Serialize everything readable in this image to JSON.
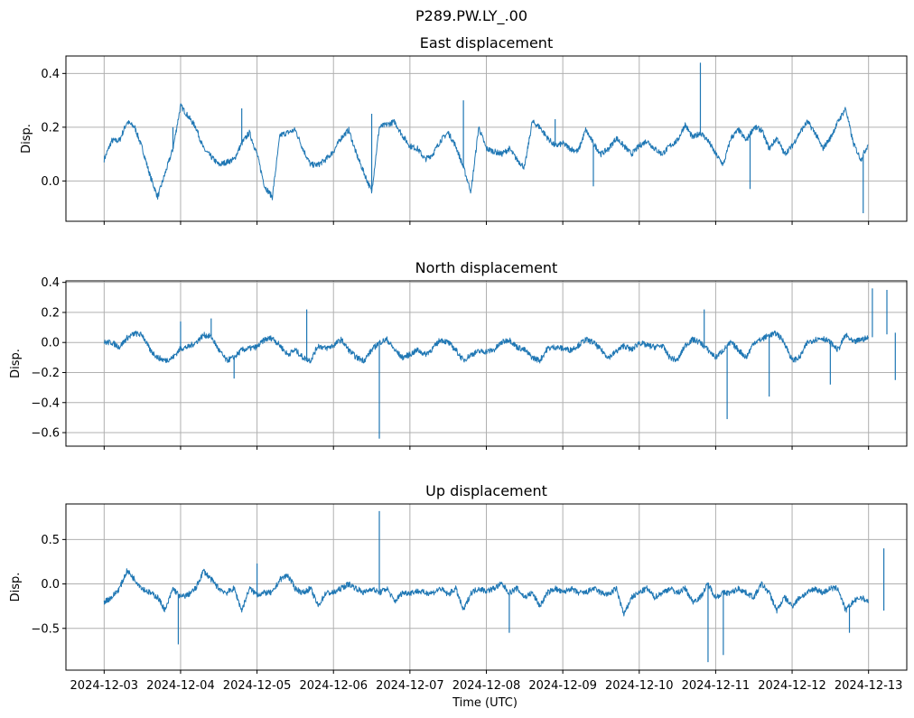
{
  "chart_data": {
    "type": "line",
    "suptitle": "P289.PW.LY_.00",
    "xlabel": "Time (UTC)",
    "x_ticks": [
      "2024-12-03",
      "2024-12-04",
      "2024-12-05",
      "2024-12-06",
      "2024-12-07",
      "2024-12-08",
      "2024-12-09",
      "2024-12-10",
      "2024-12-11",
      "2024-12-12",
      "2024-12-13"
    ],
    "xlim_days": [
      -0.5,
      10.5
    ],
    "grid": true,
    "line_color": "#1f77b4",
    "panels": [
      {
        "title": "East displacement",
        "ylabel": "Disp.",
        "ylim": [
          -0.15,
          0.465
        ],
        "y_ticks": [
          0.0,
          0.2,
          0.4
        ],
        "y_tick_labels": [
          "0.0",
          "0.2",
          "0.4"
        ],
        "show_x_labels": false,
        "series": {
          "day": [
            0,
            0.1,
            0.2,
            0.3,
            0.4,
            0.5,
            0.6,
            0.7,
            0.8,
            0.9,
            1.0,
            1.1,
            1.2,
            1.3,
            1.4,
            1.5,
            1.6,
            1.7,
            1.8,
            1.9,
            2.0,
            2.1,
            2.2,
            2.3,
            2.4,
            2.5,
            2.6,
            2.7,
            2.8,
            2.9,
            3.0,
            3.1,
            3.2,
            3.3,
            3.4,
            3.5,
            3.6,
            3.7,
            3.8,
            3.9,
            4.0,
            4.1,
            4.2,
            4.3,
            4.4,
            4.5,
            4.6,
            4.7,
            4.8,
            4.9,
            5.0,
            5.1,
            5.2,
            5.3,
            5.4,
            5.5,
            5.6,
            5.7,
            5.8,
            5.9,
            6.0,
            6.1,
            6.2,
            6.3,
            6.4,
            6.5,
            6.6,
            6.7,
            6.8,
            6.9,
            7.0,
            7.1,
            7.2,
            7.3,
            7.4,
            7.5,
            7.6,
            7.7,
            7.8,
            7.9,
            8.0,
            8.1,
            8.2,
            8.3,
            8.4,
            8.5,
            8.6,
            8.7,
            8.8,
            8.9,
            9.0,
            9.1,
            9.2,
            9.3,
            9.4,
            9.5,
            9.6,
            9.7,
            9.8,
            9.9,
            10.0
          ],
          "value": [
            0.08,
            0.15,
            0.15,
            0.22,
            0.2,
            0.12,
            0.02,
            -0.06,
            0.03,
            0.12,
            0.28,
            0.24,
            0.2,
            0.12,
            0.09,
            0.06,
            0.07,
            0.08,
            0.14,
            0.18,
            0.1,
            -0.02,
            -0.06,
            0.17,
            0.18,
            0.19,
            0.12,
            0.06,
            0.06,
            0.08,
            0.11,
            0.16,
            0.19,
            0.1,
            0.03,
            -0.04,
            0.2,
            0.21,
            0.22,
            0.17,
            0.13,
            0.12,
            0.08,
            0.1,
            0.15,
            0.18,
            0.13,
            0.05,
            -0.04,
            0.2,
            0.12,
            0.11,
            0.1,
            0.12,
            0.08,
            0.05,
            0.22,
            0.2,
            0.16,
            0.13,
            0.14,
            0.12,
            0.11,
            0.19,
            0.14,
            0.1,
            0.12,
            0.16,
            0.13,
            0.1,
            0.13,
            0.15,
            0.12,
            0.1,
            0.13,
            0.15,
            0.21,
            0.16,
            0.18,
            0.15,
            0.1,
            0.06,
            0.16,
            0.19,
            0.15,
            0.2,
            0.19,
            0.12,
            0.16,
            0.1,
            0.13,
            0.18,
            0.22,
            0.18,
            0.12,
            0.16,
            0.22,
            0.27,
            0.14,
            0.08,
            0.14
          ],
          "spikes": [
            {
              "day": 0.9,
              "value": 0.2
            },
            {
              "day": 1.8,
              "value": 0.27
            },
            {
              "day": 3.5,
              "value": 0.25
            },
            {
              "day": 4.7,
              "value": 0.3
            },
            {
              "day": 5.9,
              "value": 0.23
            },
            {
              "day": 7.8,
              "value": 0.44
            },
            {
              "day": 8.45,
              "value": -0.03
            },
            {
              "day": 9.93,
              "value": -0.12
            },
            {
              "day": 6.4,
              "value": -0.02
            }
          ]
        }
      },
      {
        "title": "North displacement",
        "ylabel": "Disp.",
        "ylim": [
          -0.69,
          0.41
        ],
        "y_ticks": [
          -0.6,
          -0.4,
          -0.2,
          0.0,
          0.2,
          0.4
        ],
        "y_tick_labels": [
          "−0.6",
          "−0.4",
          "−0.2",
          "0.0",
          "0.2",
          "0.4"
        ],
        "show_x_labels": false,
        "series": {
          "day": [
            0,
            0.1,
            0.2,
            0.3,
            0.4,
            0.5,
            0.6,
            0.7,
            0.8,
            0.9,
            1.0,
            1.1,
            1.2,
            1.3,
            1.4,
            1.5,
            1.6,
            1.7,
            1.8,
            1.9,
            2.0,
            2.1,
            2.2,
            2.3,
            2.4,
            2.5,
            2.6,
            2.7,
            2.8,
            2.9,
            3.0,
            3.1,
            3.2,
            3.3,
            3.4,
            3.5,
            3.6,
            3.7,
            3.8,
            3.9,
            4.0,
            4.1,
            4.2,
            4.3,
            4.4,
            4.5,
            4.6,
            4.7,
            4.8,
            4.9,
            5.0,
            5.1,
            5.2,
            5.3,
            5.4,
            5.5,
            5.6,
            5.7,
            5.8,
            5.9,
            6.0,
            6.1,
            6.2,
            6.3,
            6.4,
            6.5,
            6.6,
            6.7,
            6.8,
            6.9,
            7.0,
            7.1,
            7.2,
            7.3,
            7.4,
            7.5,
            7.6,
            7.7,
            7.8,
            7.9,
            8.0,
            8.1,
            8.2,
            8.3,
            8.4,
            8.5,
            8.6,
            8.7,
            8.8,
            8.9,
            9.0,
            9.1,
            9.2,
            9.3,
            9.4,
            9.5,
            9.6,
            9.7,
            9.8,
            9.9,
            10.0
          ],
          "value": [
            0.0,
            0.0,
            -0.03,
            0.03,
            0.06,
            0.05,
            -0.05,
            -0.1,
            -0.12,
            -0.1,
            -0.04,
            -0.03,
            0.0,
            0.05,
            0.04,
            -0.05,
            -0.12,
            -0.1,
            -0.05,
            -0.04,
            -0.03,
            0.02,
            0.03,
            -0.02,
            -0.08,
            -0.05,
            -0.1,
            -0.12,
            -0.02,
            -0.04,
            -0.02,
            0.02,
            -0.05,
            -0.1,
            -0.12,
            -0.05,
            0.0,
            0.02,
            -0.05,
            -0.1,
            -0.08,
            -0.05,
            -0.08,
            -0.04,
            0.02,
            0.0,
            -0.05,
            -0.12,
            -0.08,
            -0.06,
            -0.06,
            -0.05,
            0.0,
            0.02,
            -0.03,
            -0.05,
            -0.1,
            -0.12,
            -0.04,
            -0.03,
            -0.04,
            -0.05,
            -0.02,
            0.02,
            0.0,
            -0.05,
            -0.1,
            -0.06,
            -0.02,
            -0.05,
            0.0,
            -0.02,
            -0.03,
            -0.02,
            -0.1,
            -0.12,
            -0.02,
            0.02,
            0.0,
            -0.05,
            -0.1,
            -0.05,
            0.0,
            -0.05,
            -0.1,
            0.0,
            0.02,
            0.05,
            0.06,
            0.0,
            -0.12,
            -0.1,
            0.0,
            0.02,
            0.03,
            0.0,
            -0.05,
            0.05,
            0.0,
            0.02,
            0.03
          ],
          "spikes": [
            {
              "day": 1.0,
              "value": 0.14
            },
            {
              "day": 1.4,
              "value": 0.16
            },
            {
              "day": 1.7,
              "value": -0.24
            },
            {
              "day": 2.65,
              "value": 0.22
            },
            {
              "day": 3.6,
              "value": -0.64
            },
            {
              "day": 7.85,
              "value": 0.22
            },
            {
              "day": 8.15,
              "value": -0.51
            },
            {
              "day": 8.7,
              "value": -0.36
            },
            {
              "day": 9.5,
              "value": -0.28
            },
            {
              "day": 10.05,
              "value": 0.36
            },
            {
              "day": 10.24,
              "value": 0.35
            },
            {
              "day": 10.35,
              "value": -0.25
            }
          ]
        }
      },
      {
        "title": "Up displacement",
        "ylabel": "Disp.",
        "ylim": [
          -0.97,
          0.9
        ],
        "y_ticks": [
          -0.5,
          0.0,
          0.5
        ],
        "y_tick_labels": [
          "−0.5",
          "0.0",
          "0.5"
        ],
        "show_x_labels": true,
        "series": {
          "day": [
            0,
            0.1,
            0.2,
            0.3,
            0.4,
            0.5,
            0.6,
            0.7,
            0.8,
            0.9,
            1.0,
            1.1,
            1.2,
            1.3,
            1.4,
            1.5,
            1.6,
            1.7,
            1.8,
            1.9,
            2.0,
            2.1,
            2.2,
            2.3,
            2.4,
            2.5,
            2.6,
            2.7,
            2.8,
            2.9,
            3.0,
            3.1,
            3.2,
            3.3,
            3.4,
            3.5,
            3.6,
            3.7,
            3.8,
            3.9,
            4.0,
            4.1,
            4.2,
            4.3,
            4.4,
            4.5,
            4.6,
            4.7,
            4.8,
            4.9,
            5.0,
            5.1,
            5.2,
            5.3,
            5.4,
            5.5,
            5.6,
            5.7,
            5.8,
            5.9,
            6.0,
            6.1,
            6.2,
            6.3,
            6.4,
            6.5,
            6.6,
            6.7,
            6.8,
            6.9,
            7.0,
            7.1,
            7.2,
            7.3,
            7.4,
            7.5,
            7.6,
            7.7,
            7.8,
            7.9,
            8.0,
            8.1,
            8.2,
            8.3,
            8.4,
            8.5,
            8.6,
            8.7,
            8.8,
            8.9,
            9.0,
            9.1,
            9.2,
            9.3,
            9.4,
            9.5,
            9.6,
            9.7,
            9.8,
            9.9,
            10.0
          ],
          "value": [
            -0.2,
            -0.15,
            -0.05,
            0.15,
            0.05,
            -0.05,
            -0.1,
            -0.15,
            -0.3,
            -0.05,
            -0.15,
            -0.12,
            -0.05,
            0.15,
            0.05,
            -0.05,
            -0.1,
            -0.05,
            -0.3,
            -0.05,
            -0.12,
            -0.1,
            -0.1,
            0.05,
            0.1,
            -0.05,
            -0.1,
            -0.05,
            -0.25,
            -0.1,
            -0.1,
            -0.05,
            0.0,
            -0.05,
            -0.1,
            -0.05,
            -0.1,
            -0.05,
            -0.2,
            -0.1,
            -0.1,
            -0.08,
            -0.1,
            -0.1,
            -0.05,
            -0.12,
            -0.05,
            -0.3,
            -0.1,
            -0.05,
            -0.08,
            -0.05,
            0.0,
            -0.1,
            -0.05,
            -0.15,
            -0.1,
            -0.25,
            -0.1,
            -0.05,
            -0.1,
            -0.05,
            -0.1,
            -0.1,
            -0.05,
            -0.1,
            -0.12,
            -0.05,
            -0.35,
            -0.15,
            -0.1,
            -0.05,
            -0.15,
            -0.1,
            -0.05,
            -0.1,
            -0.05,
            -0.2,
            -0.15,
            0.0,
            -0.15,
            -0.1,
            -0.1,
            -0.05,
            -0.1,
            -0.15,
            0.0,
            -0.1,
            -0.3,
            -0.15,
            -0.25,
            -0.15,
            -0.1,
            -0.05,
            -0.1,
            -0.05,
            -0.05,
            -0.3,
            -0.2,
            -0.15,
            -0.2
          ],
          "spikes": [
            {
              "day": 0.97,
              "value": -0.68
            },
            {
              "day": 2.0,
              "value": 0.23
            },
            {
              "day": 3.6,
              "value": 0.82
            },
            {
              "day": 5.3,
              "value": -0.55
            },
            {
              "day": 7.9,
              "value": -0.88
            },
            {
              "day": 8.1,
              "value": -0.8
            },
            {
              "day": 10.2,
              "value": 0.4
            },
            {
              "day": 9.75,
              "value": -0.55
            }
          ]
        }
      }
    ]
  }
}
